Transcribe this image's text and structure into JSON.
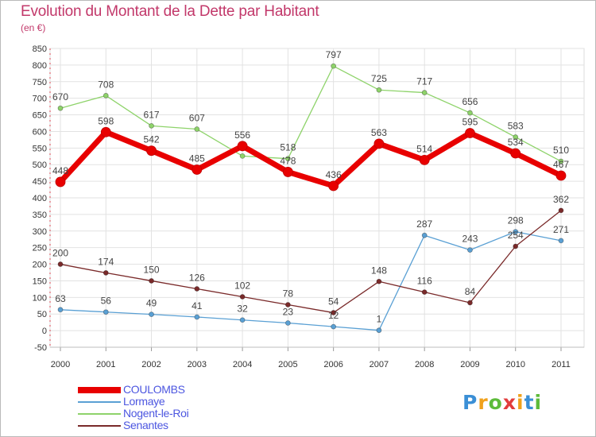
{
  "title": "Evolution du Montant de la Dette par Habitant",
  "subtitle": "(en €)",
  "logo": {
    "text": "Proxiti",
    "colors": [
      "#3b8fd6",
      "#f0a11b",
      "#5dbb3a",
      "#e23c3c",
      "#f0a11b",
      "#3b8fd6",
      "#5dbb3a"
    ]
  },
  "chart_data": {
    "type": "line",
    "x": [
      "2000",
      "2001",
      "2002",
      "2003",
      "2004",
      "2005",
      "2006",
      "2007",
      "2008",
      "2009",
      "2010",
      "2011"
    ],
    "ylim": [
      -50,
      850
    ],
    "yticks": [
      -50,
      0,
      50,
      100,
      150,
      200,
      250,
      300,
      350,
      400,
      450,
      500,
      550,
      600,
      650,
      700,
      750,
      800,
      850
    ],
    "grid": true,
    "legend": "bottom-left",
    "series": [
      {
        "name": "Nogent-le-Roi",
        "color": "#8ed36a",
        "values": [
          670,
          708,
          617,
          607,
          526,
          518,
          797,
          725,
          717,
          656,
          583,
          510
        ]
      },
      {
        "name": "Lormaye",
        "color": "#5aa0d4",
        "values": [
          63,
          56,
          49,
          41,
          32,
          23,
          12,
          1,
          287,
          243,
          298,
          271
        ]
      },
      {
        "name": "Senantes",
        "color": "#7a2a2a",
        "values": [
          200,
          174,
          150,
          126,
          102,
          78,
          54,
          148,
          116,
          84,
          254,
          362
        ]
      },
      {
        "name": "COULOMBS",
        "color": "#e80000",
        "values": [
          448,
          598,
          542,
          485,
          556,
          478,
          436,
          563,
          514,
          595,
          534,
          467
        ]
      }
    ],
    "data_labels": {
      "Nogent-le-Roi": [
        "670",
        "708",
        "617",
        "607",
        "",
        "518",
        "797",
        "725",
        "717",
        "656",
        "583",
        "510"
      ],
      "Lormaye": [
        "63",
        "56",
        "49",
        "41",
        "32",
        "23",
        "12",
        "1",
        "287",
        "243",
        "298",
        "271"
      ],
      "Senantes": [
        "200",
        "174",
        "150",
        "126",
        "102",
        "78",
        "54",
        "148",
        "116",
        "84",
        "254",
        "362"
      ],
      "COULOMBS": [
        "448",
        "598",
        "542",
        "485",
        "556",
        "478",
        "436",
        "563",
        "514",
        "595",
        "534",
        "467"
      ]
    }
  },
  "legend_items": [
    {
      "name": "COULOMBS",
      "color": "#e80000"
    },
    {
      "name": "Lormaye",
      "color": "#5aa0d4"
    },
    {
      "name": "Nogent-le-Roi",
      "color": "#8ed36a"
    },
    {
      "name": "Senantes",
      "color": "#7a2a2a"
    }
  ]
}
